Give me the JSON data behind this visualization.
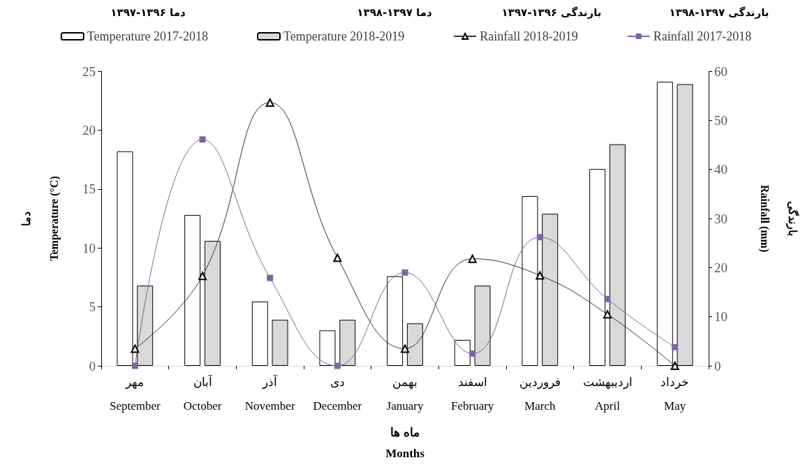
{
  "chart_data": {
    "type": "bar",
    "categories": [
      "مهر\nSeptember",
      "آبان\nOctober",
      "آذر\nNovember",
      "دی\nDecember",
      "بهمن\nJanuary",
      "اسفند\nFebruary",
      "فروردین\nMarch",
      "اردیبهشت\nApril",
      "خرداد\nMay"
    ],
    "series": [
      {
        "name": "Temperature 2017-2018",
        "color": "#ffffff",
        "values": [
          18.2,
          12.8,
          5.45,
          3.0,
          7.6,
          2.2,
          14.4,
          16.7,
          24.1
        ]
      },
      {
        "name": "Temperature 2018-2019",
        "color": "#d9d9d9",
        "values": [
          6.8,
          10.6,
          3.9,
          3.9,
          3.6,
          6.8,
          12.9,
          18.8,
          23.9
        ]
      },
      {
        "name": "Rainfall 2018-2019",
        "type": "line",
        "axis": "y2",
        "marker": "triangle",
        "color": "#000000",
        "values": [
          3.5,
          18.3,
          53.6,
          22.0,
          3.5,
          21.8,
          18.4,
          10.5,
          0
        ]
      },
      {
        "name": "Rainfall 2017-2018",
        "type": "line",
        "axis": "y2",
        "marker": "square",
        "color": "#8064a2",
        "values": [
          0,
          46.1,
          17.9,
          0,
          19.0,
          2.5,
          26.2,
          13.6,
          3.8
        ]
      }
    ],
    "xlabel": "ماه ها\nMonths",
    "ylabel": "دما\nTemperature (°C)",
    "y2label": "بارندگی\nRainfall (mm)",
    "ylim": [
      0,
      25
    ],
    "yticks": [
      0,
      5,
      10,
      15,
      20,
      25
    ],
    "y2lim": [
      0,
      60
    ],
    "y2ticks": [
      0,
      10,
      20,
      30,
      40,
      50,
      60
    ],
    "annotations": [
      "دما ۱۳۹۶-۱۳۹۷",
      "دما ۱۳۹۷-۱۳۹۸",
      "بارندگی ۱۳۹۶-۱۳۹۷",
      "بارندگی ۱۳۹۷-۱۳۹۸"
    ],
    "legend": "top",
    "grid": false
  }
}
